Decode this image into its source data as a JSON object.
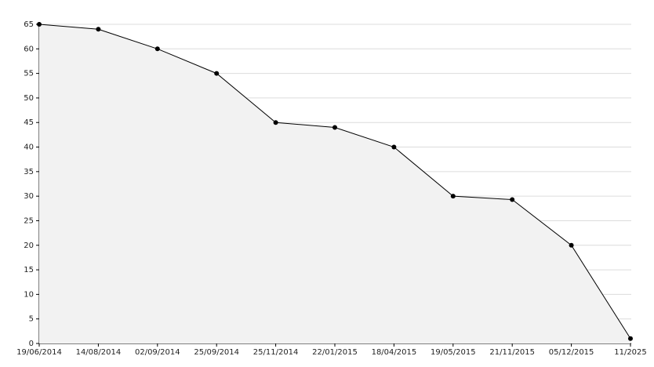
{
  "chart_data": {
    "type": "area",
    "categories": [
      "19/06/2014",
      "14/08/2014",
      "02/09/2014",
      "25/09/2014",
      "25/11/2014",
      "22/01/2015",
      "18/04/2015",
      "19/05/2015",
      "21/11/2015",
      "05/12/2015",
      "11/2025"
    ],
    "values": [
      65,
      64,
      60,
      55,
      45,
      44,
      40,
      30,
      29.3,
      20,
      1
    ],
    "color": "#000000",
    "fill": "#f2f2f2",
    "ylim": [
      0,
      65
    ],
    "yticks": [
      0,
      5,
      10,
      15,
      20,
      25,
      30,
      35,
      40,
      45,
      50,
      55,
      60,
      65
    ],
    "grid": true
  }
}
